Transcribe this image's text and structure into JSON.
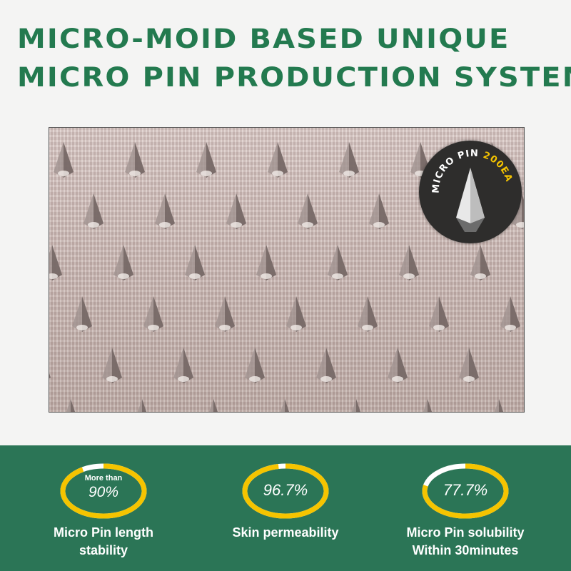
{
  "header": {
    "title_line1": "MICRO-MOID BASED UNIQUE",
    "title_line2": "MICRO PIN PRODUCTION SYSTEM"
  },
  "badge": {
    "text_white": "MICRO PIN ",
    "text_yellow": "200EA",
    "icon": "micro-pin-icon"
  },
  "colors": {
    "green": "#2b7556",
    "title_green": "#237a4f",
    "ring_yellow": "#f5c400",
    "ring_gap": "#ffffff"
  },
  "stats": [
    {
      "prefix": "More than",
      "value": "90%",
      "percent": 90,
      "label_line1": "Micro Pin length",
      "label_line2": "stability"
    },
    {
      "prefix": "",
      "value": "96.7%",
      "percent": 96.7,
      "label_line1": "Skin permeability",
      "label_line2": ""
    },
    {
      "prefix": "",
      "value": "77.7%",
      "percent": 77.7,
      "label_line1": "Micro Pin solubility",
      "label_line2": "Within 30minutes"
    }
  ]
}
